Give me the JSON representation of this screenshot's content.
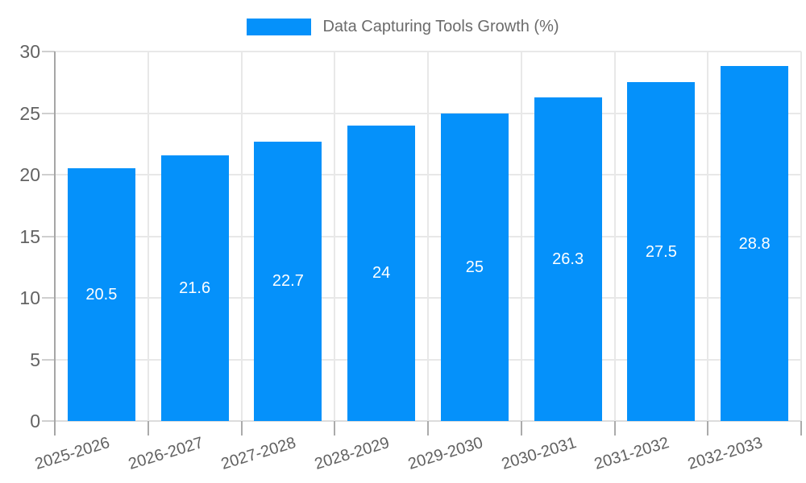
{
  "chart_data": {
    "type": "bar",
    "legend": "Data Capturing Tools Growth (%)",
    "categories": [
      "2025-2026",
      "2026-2027",
      "2027-2028",
      "2028-2029",
      "2029-2030",
      "2030-2031",
      "2031-2032",
      "2032-2033"
    ],
    "values": [
      20.5,
      21.6,
      22.7,
      24,
      25,
      26.3,
      27.5,
      28.8
    ],
    "value_labels": [
      "20.5",
      "21.6",
      "22.7",
      "24",
      "25",
      "26.3",
      "27.5",
      "28.8"
    ],
    "title": "",
    "xlabel": "",
    "ylabel": "",
    "ylim": [
      0,
      30
    ],
    "yticks": [
      0,
      5,
      10,
      15,
      20,
      25,
      30
    ],
    "grid": "on",
    "legend_position": "top-center",
    "x_label_rotation_deg": -17,
    "colors": {
      "bar": "#0591fa",
      "bar_label_text": "#ffffff",
      "axis_text": "#616161",
      "y_axis_text": "#636363",
      "legend_text": "#6b6b6b",
      "gridline": "#e8e8e8",
      "baseline": "#dcdcdc",
      "axis_line": "#a6a6a6",
      "background": "#ffffff"
    }
  }
}
